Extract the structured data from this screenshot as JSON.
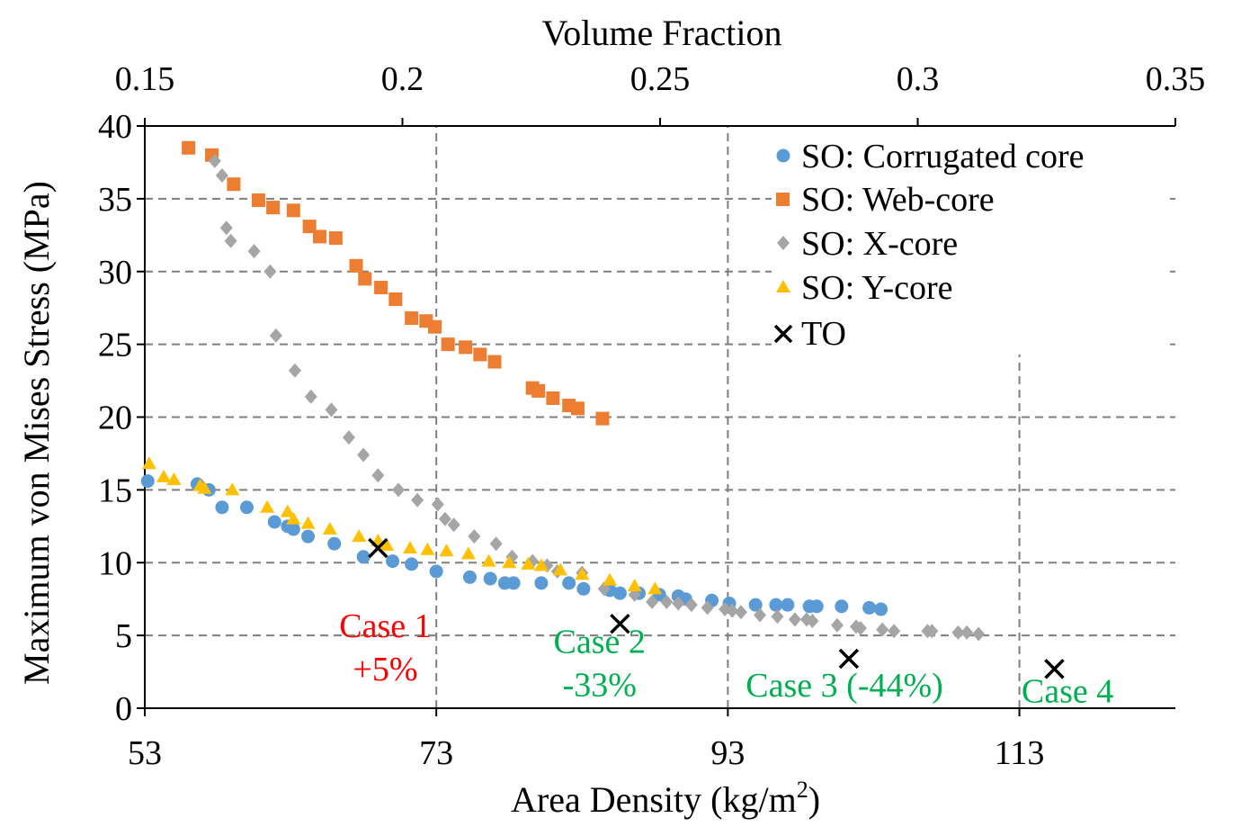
{
  "chart_data": {
    "type": "scatter",
    "title": "",
    "xlabel": "Area Density (kg/m",
    "xlabel_sup": "2",
    "xlabel_tail": ")",
    "ylabel": "Maximum von Mises Stress (MPa)",
    "x2label": "Volume Fraction",
    "xlim": [
      53,
      123.7
    ],
    "ylim": [
      0,
      40
    ],
    "x2lim": [
      0.15,
      0.35
    ],
    "x_ticks": [
      "53",
      "73",
      "93",
      "113"
    ],
    "y_ticks": [
      "0",
      "5",
      "10",
      "15",
      "20",
      "25",
      "30",
      "35",
      "40"
    ],
    "x2_ticks": [
      "0.15",
      "0.2",
      "0.25",
      "0.3",
      "0.35"
    ],
    "grid": true,
    "legend_position": "top-right",
    "series": [
      {
        "name": "SO: Corrugated core",
        "marker": "circle",
        "color": "#5b9bd5",
        "points": [
          [
            53.2,
            15.6
          ],
          [
            56.6,
            15.4
          ],
          [
            57.4,
            15.0
          ],
          [
            58.3,
            13.8
          ],
          [
            60.0,
            13.8
          ],
          [
            61.9,
            12.8
          ],
          [
            62.8,
            12.5
          ],
          [
            63.2,
            12.3
          ],
          [
            64.2,
            11.8
          ],
          [
            66.0,
            11.3
          ],
          [
            68.0,
            10.4
          ],
          [
            70.0,
            10.1
          ],
          [
            71.3,
            9.9
          ],
          [
            73.0,
            9.4
          ],
          [
            75.3,
            9.0
          ],
          [
            76.7,
            8.9
          ],
          [
            77.7,
            8.6
          ],
          [
            78.3,
            8.6
          ],
          [
            80.2,
            8.6
          ],
          [
            82.1,
            8.6
          ],
          [
            83.1,
            8.2
          ],
          [
            84.9,
            8.1
          ],
          [
            85.6,
            7.9
          ],
          [
            86.9,
            7.9
          ],
          [
            88.3,
            7.8
          ],
          [
            89.6,
            7.7
          ],
          [
            90.1,
            7.5
          ],
          [
            91.9,
            7.4
          ],
          [
            93.1,
            7.2
          ],
          [
            94.9,
            7.1
          ],
          [
            96.3,
            7.1
          ],
          [
            97.1,
            7.1
          ],
          [
            98.6,
            7.0
          ],
          [
            99.1,
            7.0
          ],
          [
            100.8,
            7.0
          ],
          [
            102.7,
            6.9
          ],
          [
            103.5,
            6.8
          ]
        ]
      },
      {
        "name": "SO: Web-core",
        "marker": "square",
        "color": "#ed7d31",
        "points": [
          [
            56.0,
            38.5
          ],
          [
            57.6,
            38.0
          ],
          [
            59.1,
            36.0
          ],
          [
            60.8,
            34.9
          ],
          [
            61.8,
            34.4
          ],
          [
            63.2,
            34.2
          ],
          [
            64.3,
            33.1
          ],
          [
            65.0,
            32.4
          ],
          [
            66.1,
            32.3
          ],
          [
            67.5,
            30.4
          ],
          [
            68.1,
            29.5
          ],
          [
            69.2,
            28.9
          ],
          [
            70.2,
            28.1
          ],
          [
            71.3,
            26.8
          ],
          [
            72.3,
            26.6
          ],
          [
            72.9,
            26.2
          ],
          [
            73.8,
            25.0
          ],
          [
            75.0,
            24.8
          ],
          [
            76.0,
            24.3
          ],
          [
            77.0,
            23.8
          ],
          [
            79.6,
            22.0
          ],
          [
            80.0,
            21.8
          ],
          [
            81.0,
            21.3
          ],
          [
            82.1,
            20.8
          ],
          [
            82.7,
            20.6
          ],
          [
            84.4,
            19.9
          ]
        ]
      },
      {
        "name": "SO: X-core",
        "marker": "diamond",
        "color": "#a5a5a5",
        "points": [
          [
            57.8,
            37.6
          ],
          [
            58.3,
            36.6
          ],
          [
            58.6,
            33.0
          ],
          [
            58.9,
            32.1
          ],
          [
            60.5,
            31.4
          ],
          [
            61.6,
            30.0
          ],
          [
            62.0,
            25.6
          ],
          [
            63.3,
            23.2
          ],
          [
            64.4,
            21.4
          ],
          [
            65.8,
            20.5
          ],
          [
            67.0,
            18.6
          ],
          [
            68.0,
            17.4
          ],
          [
            69.0,
            16.0
          ],
          [
            70.4,
            15.0
          ],
          [
            71.7,
            14.3
          ],
          [
            73.1,
            14.0
          ],
          [
            73.6,
            13.0
          ],
          [
            74.2,
            12.6
          ],
          [
            75.6,
            11.8
          ],
          [
            77.1,
            11.3
          ],
          [
            78.2,
            10.4
          ],
          [
            79.6,
            10.1
          ],
          [
            80.6,
            9.8
          ],
          [
            81.3,
            9.4
          ],
          [
            83.0,
            9.3
          ],
          [
            84.5,
            8.2
          ],
          [
            86.6,
            7.8
          ],
          [
            87.8,
            7.3
          ],
          [
            88.8,
            7.3
          ],
          [
            89.6,
            7.2
          ],
          [
            90.5,
            7.1
          ],
          [
            91.6,
            6.9
          ],
          [
            92.8,
            6.8
          ],
          [
            93.3,
            6.7
          ],
          [
            93.9,
            6.6
          ],
          [
            95.2,
            6.4
          ],
          [
            96.4,
            6.3
          ],
          [
            97.6,
            6.1
          ],
          [
            98.4,
            6.1
          ],
          [
            98.8,
            6.0
          ],
          [
            100.5,
            5.7
          ],
          [
            101.8,
            5.6
          ],
          [
            102.1,
            5.5
          ],
          [
            103.6,
            5.4
          ],
          [
            104.4,
            5.3
          ],
          [
            106.7,
            5.3
          ],
          [
            107.0,
            5.3
          ],
          [
            108.8,
            5.2
          ],
          [
            109.4,
            5.2
          ],
          [
            110.2,
            5.1
          ]
        ]
      },
      {
        "name": "SO: Y-core",
        "marker": "triangle",
        "color": "#ffc000",
        "points": [
          [
            53.3,
            16.8
          ],
          [
            54.3,
            15.9
          ],
          [
            55.0,
            15.7
          ],
          [
            56.8,
            15.3
          ],
          [
            57.1,
            15.1
          ],
          [
            59.0,
            15.0
          ],
          [
            61.4,
            13.8
          ],
          [
            62.8,
            13.5
          ],
          [
            63.2,
            13.0
          ],
          [
            64.2,
            12.7
          ],
          [
            65.7,
            12.3
          ],
          [
            67.7,
            11.8
          ],
          [
            69.0,
            11.5
          ],
          [
            69.6,
            11.2
          ],
          [
            71.2,
            11.0
          ],
          [
            72.4,
            10.9
          ],
          [
            73.7,
            10.8
          ],
          [
            75.2,
            10.6
          ],
          [
            76.6,
            10.1
          ],
          [
            78.0,
            10.0
          ],
          [
            79.3,
            9.9
          ],
          [
            80.2,
            9.8
          ],
          [
            81.5,
            9.5
          ],
          [
            83.0,
            9.2
          ],
          [
            84.9,
            8.8
          ],
          [
            86.6,
            8.4
          ],
          [
            88.0,
            8.2
          ]
        ]
      },
      {
        "name": "TO",
        "marker": "cross",
        "color": "#000000",
        "points": [
          [
            69.0,
            11.0
          ],
          [
            85.6,
            5.8
          ],
          [
            101.3,
            3.4
          ],
          [
            115.4,
            2.7
          ]
        ]
      }
    ],
    "annotations": [
      {
        "lines": [
          "Case 1",
          "+5%"
        ],
        "color": "#ff0000",
        "x": 69.5,
        "y": 5.7
      },
      {
        "lines": [
          "Case 2",
          "-33%"
        ],
        "color": "#00b050",
        "x": 84.2,
        "y": 4.6
      },
      {
        "lines": [
          "Case 3 (-44%)"
        ],
        "color": "#00b050",
        "x": 101.0,
        "y": 1.6
      },
      {
        "lines": [
          "Case 4"
        ],
        "color": "#00b050",
        "x": 116.3,
        "y": 1.2
      }
    ],
    "partial_gridlines": [
      {
        "x": 113,
        "y_from": 0,
        "y_to": 24.5
      }
    ]
  }
}
